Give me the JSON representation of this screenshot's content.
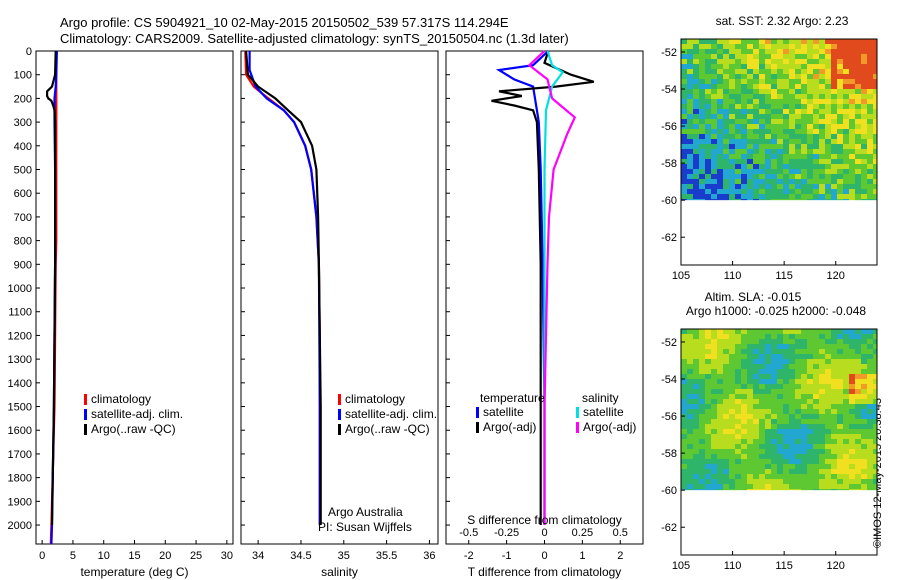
{
  "header": {
    "line1": "Argo profile: CS 5904921_10 02-May-2015 20150502_539 57.317S 114.294E",
    "line2": "Climatology: CARS2009. Satellite-adjusted climatology: synTS_20150504.nc (1.3d later)"
  },
  "colors": {
    "climatology": "#ff0000",
    "satellite": "#0000ff",
    "argo": "#000000",
    "sat_salinity": "#00e0e0",
    "argo_salinity": "#ff00ff"
  },
  "legend_profile": {
    "climatology": "climatology",
    "satellite": "satellite-adj. clim.",
    "argo": "Argo(..raw -QC)"
  },
  "legend_diff": {
    "temperature_head": "temperature",
    "salinity_head": "salinity",
    "satellite": "satellite",
    "argo": "Argo(-adj)"
  },
  "credits": {
    "org": "Argo Australia",
    "pi": "PI: Susan Wijffels",
    "imos": "©IMOS 12-May-2015 20:38:43"
  },
  "maps": {
    "sst_title": "sat. SST: 2.32 Argo: 2.23",
    "sla_title1": "Altim. SLA: -0.015",
    "sla_title2": "Argo h1000: -0.025 h2000: -0.048"
  },
  "chart_data": [
    {
      "type": "line",
      "xlabel": "temperature (deg C)",
      "xlim": [
        -1,
        31
      ],
      "xticks": [
        "0",
        "5",
        "10",
        "15",
        "20",
        "25",
        "30"
      ],
      "ylim": [
        0,
        2080
      ],
      "yticks": [
        "0",
        "100",
        "200",
        "300",
        "400",
        "500",
        "600",
        "700",
        "800",
        "900",
        "1000",
        "1100",
        "1200",
        "1300",
        "1400",
        "1500",
        "1600",
        "1700",
        "1800",
        "1900",
        "2000"
      ],
      "series": [
        {
          "name": "climatology",
          "depth": [
            0,
            100,
            200,
            300,
            500,
            800,
            900,
            1500,
            2000,
            2080
          ],
          "x": [
            2.3,
            2.3,
            2.3,
            2.3,
            2.3,
            2.3,
            2.2,
            2.0,
            1.5,
            1.4
          ]
        },
        {
          "name": "satellite-adj. clim.",
          "depth": [
            0,
            100,
            150,
            200,
            300,
            500,
            900,
            1500,
            2000,
            2080
          ],
          "x": [
            2.4,
            2.3,
            2.2,
            2.0,
            2.0,
            2.1,
            2.1,
            1.9,
            1.6,
            1.5
          ]
        },
        {
          "name": "Argo(..raw -QC)",
          "depth": [
            0,
            100,
            150,
            170,
            190,
            200,
            210,
            230,
            250,
            300,
            500,
            900,
            1500,
            2000
          ],
          "x": [
            2.2,
            2.1,
            1.6,
            0.8,
            0.8,
            1.0,
            1.5,
            1.8,
            2.0,
            2.1,
            2.1,
            2.1,
            1.9,
            1.6
          ]
        }
      ]
    },
    {
      "type": "line",
      "xlabel": "salinity",
      "xlim": [
        33.8,
        36.1
      ],
      "xticks": [
        "34",
        "34.5",
        "35",
        "35.5",
        "36"
      ],
      "ylim": [
        0,
        2080
      ],
      "series": [
        {
          "name": "climatology",
          "depth": [
            0,
            100,
            150,
            180,
            250,
            300,
            400,
            500,
            700,
            900,
            1200,
            2000
          ],
          "x": [
            33.85,
            33.86,
            33.95,
            34.05,
            34.3,
            34.42,
            34.55,
            34.62,
            34.68,
            34.71,
            34.72,
            34.72
          ]
        },
        {
          "name": "satellite-adj. clim.",
          "depth": [
            0,
            80,
            150,
            200,
            250,
            300,
            400,
            500,
            700,
            900,
            1500,
            2000
          ],
          "x": [
            33.9,
            33.9,
            33.97,
            34.1,
            34.3,
            34.42,
            34.55,
            34.62,
            34.68,
            34.71,
            34.72,
            34.72
          ]
        },
        {
          "name": "Argo(..raw -QC)",
          "depth": [
            0,
            100,
            150,
            200,
            250,
            300,
            400,
            500,
            700,
            900,
            1200,
            1500,
            2000
          ],
          "x": [
            33.86,
            33.88,
            34.0,
            34.2,
            34.35,
            34.5,
            34.63,
            34.68,
            34.7,
            34.71,
            34.72,
            34.73,
            34.73
          ]
        }
      ]
    },
    {
      "type": "line",
      "xlabel": "T difference from climatology",
      "xlabel_top": "S difference from climatology",
      "xlim": [
        -2.6,
        2.6
      ],
      "xticks": [
        "-2",
        "-1",
        "0",
        "1",
        "2"
      ],
      "xticks_top": [
        "-0.5",
        "-0.25",
        "0",
        "0.25",
        "0.5"
      ],
      "ylim": [
        0,
        2080
      ],
      "series": [
        {
          "name": "satellite (T)",
          "depth": [
            0,
            60,
            80,
            120,
            150,
            200,
            300,
            500,
            900,
            1500,
            2000
          ],
          "x": [
            0.1,
            -0.3,
            -1.2,
            -0.8,
            -0.3,
            -0.25,
            -0.15,
            -0.1,
            -0.05,
            0,
            0
          ]
        },
        {
          "name": "Argo(-adj) (T)",
          "depth": [
            0,
            50,
            100,
            130,
            150,
            170,
            190,
            210,
            230,
            250,
            300,
            500,
            900,
            1500,
            1800,
            2000
          ],
          "x": [
            0.1,
            0,
            0.7,
            1.3,
            0.3,
            -1.2,
            -0.6,
            -1.4,
            -0.8,
            -0.3,
            -0.2,
            -0.15,
            -0.1,
            -0.1,
            -0.1,
            -0.1
          ]
        },
        {
          "name": "satellite (S)",
          "depth": [
            0,
            60,
            90,
            150,
            250,
            500,
            900,
            1500,
            2000
          ],
          "x": [
            0.02,
            0.05,
            0.12,
            0.05,
            0.01,
            0.0,
            0.0,
            0.0,
            0.0
          ]
        },
        {
          "name": "Argo(-adj) (S)",
          "depth": [
            0,
            60,
            120,
            200,
            280,
            350,
            500,
            700,
            900,
            1500,
            2000
          ],
          "x": [
            0.0,
            -0.1,
            0.02,
            0.05,
            0.2,
            0.15,
            0.06,
            0.03,
            0.02,
            0.0,
            0.0
          ]
        }
      ]
    },
    {
      "type": "heatmap",
      "title": "sat. SST: 2.32 Argo: 2.23",
      "xlim": [
        105,
        124
      ],
      "ylim": [
        -63.5,
        -51.3
      ],
      "xticks": [
        "105",
        "110",
        "115",
        "120"
      ],
      "yticks": [
        "-52",
        "-54",
        "-56",
        "-58",
        "-60",
        "-62"
      ]
    },
    {
      "type": "heatmap",
      "title": "Altim. SLA: -0.015",
      "subtitle": "Argo h1000: -0.025 h2000: -0.048",
      "xlim": [
        105,
        124
      ],
      "ylim": [
        -63.5,
        -51.3
      ],
      "xticks": [
        "105",
        "110",
        "115",
        "120"
      ],
      "yticks": [
        "-52",
        "-54",
        "-56",
        "-58",
        "-60",
        "-62"
      ]
    }
  ]
}
